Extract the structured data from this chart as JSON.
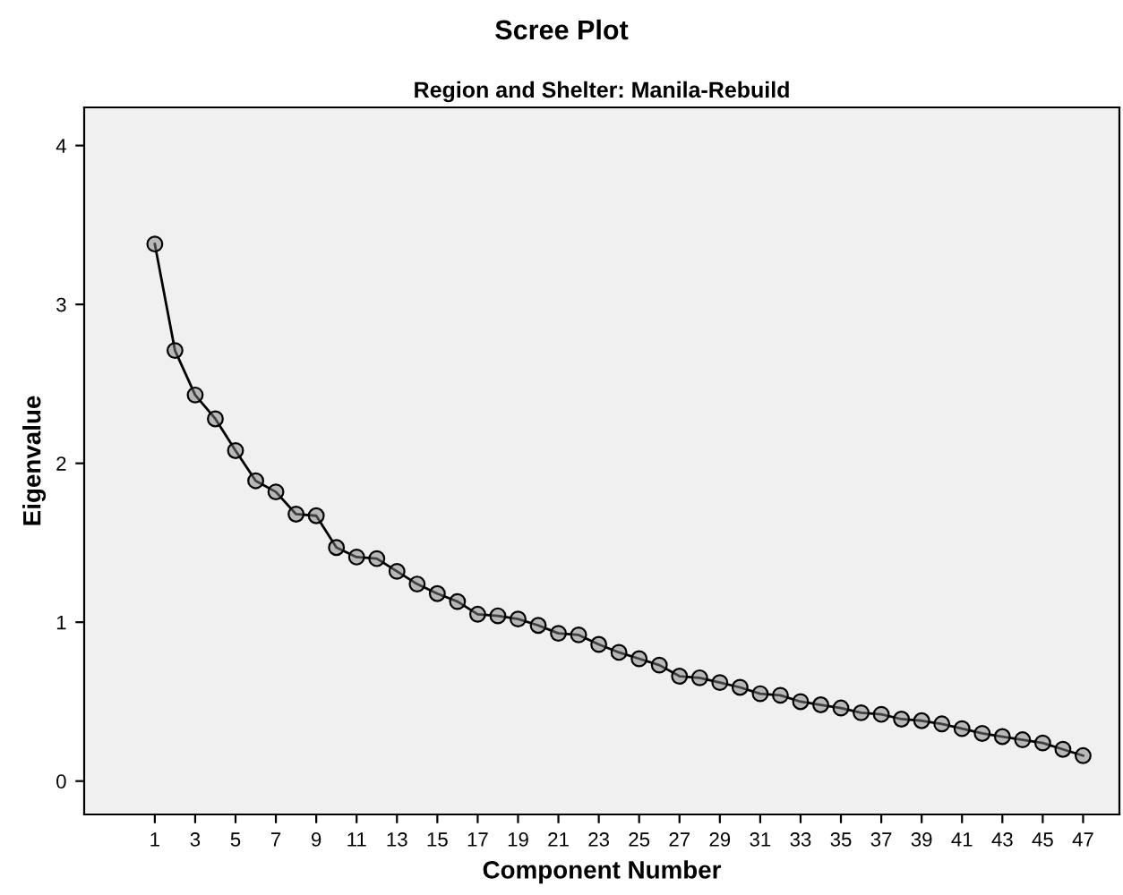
{
  "chart_data": {
    "type": "line",
    "title": "Scree Plot",
    "subtitle": "Region and Shelter: Manila-Rebuild",
    "xlabel": "Component Number",
    "ylabel": "Eigenvalue",
    "x": [
      1,
      2,
      3,
      4,
      5,
      6,
      7,
      8,
      9,
      10,
      11,
      12,
      13,
      14,
      15,
      16,
      17,
      18,
      19,
      20,
      21,
      22,
      23,
      24,
      25,
      26,
      27,
      28,
      29,
      30,
      31,
      32,
      33,
      34,
      35,
      36,
      37,
      38,
      39,
      40,
      41,
      42,
      43,
      44,
      45,
      46,
      47
    ],
    "series": [
      {
        "color": "#000000",
        "values": [
          3.38,
          2.71,
          2.43,
          2.28,
          2.08,
          1.89,
          1.82,
          1.68,
          1.67,
          1.47,
          1.41,
          1.4,
          1.32,
          1.24,
          1.18,
          1.13,
          1.05,
          1.04,
          1.02,
          0.98,
          0.93,
          0.92,
          0.86,
          0.81,
          0.77,
          0.73,
          0.66,
          0.65,
          0.62,
          0.59,
          0.55,
          0.54,
          0.5,
          0.48,
          0.46,
          0.43,
          0.42,
          0.39,
          0.38,
          0.36,
          0.33,
          0.3,
          0.28,
          0.26,
          0.24,
          0.2,
          0.16
        ]
      }
    ],
    "xlim": [
      -2.5,
      48.8
    ],
    "xticks": [
      1,
      3,
      5,
      7,
      9,
      11,
      13,
      15,
      17,
      19,
      21,
      23,
      25,
      27,
      29,
      31,
      33,
      35,
      37,
      39,
      41,
      43,
      45,
      47
    ],
    "ylim": [
      -0.21,
      4.24
    ],
    "yticks": [
      0,
      1,
      2,
      3,
      4
    ],
    "marker": "circle",
    "line_style": "solid",
    "grid": false,
    "legend": false
  }
}
